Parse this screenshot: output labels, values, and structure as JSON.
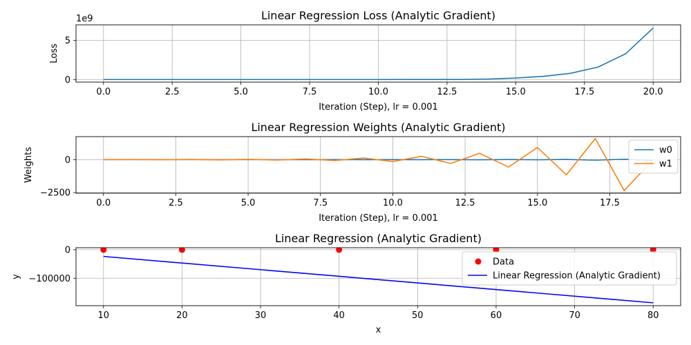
{
  "chart_data": [
    {
      "type": "line",
      "title": "Linear Regression Loss (Analytic Gradient)",
      "xlabel": "Iteration (Step), lr = 0.001",
      "ylabel": "Loss",
      "offset_label": "1e9",
      "xlim": [
        -1,
        21
      ],
      "ylim": [
        -0.33,
        7.0
      ],
      "xticks": [
        0,
        2.5,
        5,
        7.5,
        10,
        12.5,
        15,
        17.5,
        20
      ],
      "xtick_labels": [
        "0.0",
        "2.5",
        "5.0",
        "7.5",
        "10.0",
        "12.5",
        "15.0",
        "17.5",
        "20.0"
      ],
      "yticks": [
        0,
        5
      ],
      "ytick_labels": [
        "0",
        "5"
      ],
      "grid": true,
      "series": [
        {
          "color": "#1f77b4",
          "x": [
            0,
            1,
            2,
            3,
            4,
            5,
            6,
            7,
            8,
            9,
            10,
            11,
            12,
            13,
            14,
            15,
            16,
            17,
            18,
            19,
            20
          ],
          "y": [
            0,
            0,
            0,
            0,
            0,
            0,
            0,
            0,
            0,
            0,
            0,
            0.003,
            0.007,
            0.01,
            0.06,
            0.2,
            0.4,
            0.8,
            1.6,
            3.3,
            6.6
          ]
        }
      ]
    },
    {
      "type": "line",
      "title": "Linear Regression Weights (Analytic Gradient)",
      "xlabel": "Iteration (Step), lr = 0.001",
      "ylabel": "Weights",
      "xlim": [
        -0.95,
        19.95
      ],
      "ylim": [
        -2550,
        1750
      ],
      "xticks": [
        0,
        2.5,
        5,
        7.5,
        10,
        12.5,
        15,
        17.5
      ],
      "xtick_labels": [
        "0.0",
        "2.5",
        "5.0",
        "7.5",
        "10.0",
        "12.5",
        "15.0",
        "17.5"
      ],
      "yticks": [
        -2500,
        0
      ],
      "ytick_labels": [
        "−2500",
        "0"
      ],
      "grid": true,
      "legend": "right",
      "series": [
        {
          "name": "w0",
          "color": "#1f77b4",
          "x": [
            0,
            1,
            2,
            3,
            4,
            5,
            6,
            7,
            8,
            9,
            10,
            11,
            12,
            13,
            14,
            15,
            16,
            17,
            18,
            19
          ],
          "y": [
            0,
            0,
            0,
            0,
            0,
            0,
            0,
            -5,
            5,
            -5,
            5,
            -5,
            5,
            -10,
            10,
            -10,
            15,
            -40,
            30,
            -60
          ]
        },
        {
          "name": "w1",
          "color": "#ff7f0e",
          "x": [
            0,
            1,
            2,
            3,
            4,
            5,
            6,
            7,
            8,
            9,
            10,
            11,
            12,
            13,
            14,
            15,
            16,
            17,
            18,
            19
          ],
          "y": [
            5,
            10,
            -5,
            15,
            -15,
            25,
            -30,
            50,
            -60,
            120,
            -140,
            250,
            -290,
            480,
            -560,
            920,
            -1150,
            1600,
            -2350,
            0
          ]
        }
      ]
    },
    {
      "type": "scatter",
      "title": "Linear Regression (Analytic Gradient)",
      "xlabel": "x",
      "ylabel": "y",
      "xlim": [
        6.5,
        83.5
      ],
      "ylim": [
        -196000,
        7000
      ],
      "xticks": [
        10,
        20,
        30,
        40,
        50,
        60,
        70,
        80
      ],
      "xtick_labels": [
        "10",
        "20",
        "30",
        "40",
        "50",
        "60",
        "70",
        "80"
      ],
      "yticks": [
        -100000,
        0
      ],
      "ytick_labels": [
        "−100000",
        "0"
      ],
      "grid": true,
      "legend": "upper right",
      "series": [
        {
          "name": "Data",
          "kind": "points",
          "color": "#ff0000",
          "x": [
            10,
            20,
            40,
            60,
            80
          ],
          "y": [
            0,
            0,
            0,
            0,
            0
          ]
        },
        {
          "name": "Linear Regression (Analytic Gradient)",
          "kind": "line",
          "color": "#0000ff",
          "x": [
            10,
            80
          ],
          "y": [
            -23500,
            -186000
          ]
        }
      ]
    }
  ]
}
